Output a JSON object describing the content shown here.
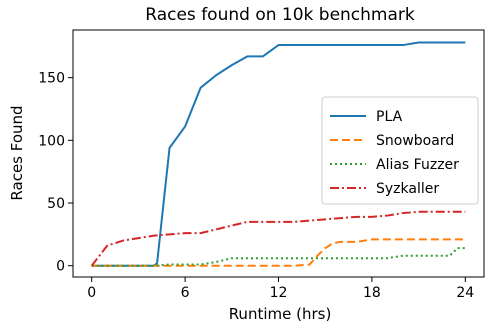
{
  "chart_data": {
    "type": "line",
    "title": "Races found on 10k benchmark",
    "xlabel": "Runtime (hrs)",
    "ylabel": "Races Found",
    "xlim": [
      -1.2,
      25.2
    ],
    "ylim": [
      -9,
      188
    ],
    "xticks": [
      0,
      6,
      12,
      18,
      24
    ],
    "yticks": [
      0,
      50,
      100,
      150
    ],
    "grid": false,
    "legend_position": "center-right",
    "series": [
      {
        "name": "PLA",
        "color": "#1f77b4",
        "dash": "solid",
        "x": [
          0,
          4,
          4.2,
          5,
          6,
          7,
          8,
          9,
          10,
          11,
          12,
          13,
          14,
          15,
          16,
          17,
          18,
          19,
          20,
          21,
          22,
          23,
          24
        ],
        "y": [
          0,
          0,
          2,
          94,
          111,
          142,
          152,
          160,
          167,
          167,
          176,
          176,
          176,
          176,
          176,
          176,
          176,
          176,
          176,
          178,
          178,
          178,
          178
        ]
      },
      {
        "name": "Snowboard",
        "color": "#ff7f0e",
        "dash": "dashed",
        "x": [
          0,
          2,
          4,
          6,
          8,
          10,
          12,
          13,
          14,
          14.5,
          15,
          15.5,
          16,
          17,
          18,
          19,
          20,
          21,
          22,
          23,
          24
        ],
        "y": [
          0,
          0,
          0,
          0,
          0,
          0,
          0,
          0,
          1,
          8,
          14,
          18,
          19,
          19,
          21,
          21,
          21,
          21,
          21,
          21,
          21
        ]
      },
      {
        "name": "Alias Fuzzer",
        "color": "#2ca02c",
        "dash": "dotted",
        "x": [
          0,
          2,
          4,
          5,
          6,
          7,
          8,
          9,
          10,
          12,
          14,
          16,
          18,
          19,
          20,
          21,
          22,
          23,
          23.5,
          24
        ],
        "y": [
          0,
          0,
          0,
          1,
          1,
          1,
          3,
          6,
          6,
          6,
          6,
          6,
          6,
          6,
          8,
          8,
          8,
          8,
          14,
          14
        ]
      },
      {
        "name": "Syzkaller",
        "color": "#d62728",
        "dash": "dashdot",
        "x": [
          0,
          1,
          2,
          3,
          4,
          5,
          6,
          7,
          8,
          9,
          10,
          11,
          12,
          13,
          14,
          15,
          16,
          17,
          18,
          19,
          20,
          21,
          22,
          23,
          24
        ],
        "y": [
          0,
          16,
          20,
          22,
          24,
          25,
          26,
          26,
          29,
          32,
          35,
          35,
          35,
          35,
          36,
          37,
          38,
          39,
          39,
          40,
          42,
          43,
          43,
          43,
          43
        ]
      }
    ]
  }
}
